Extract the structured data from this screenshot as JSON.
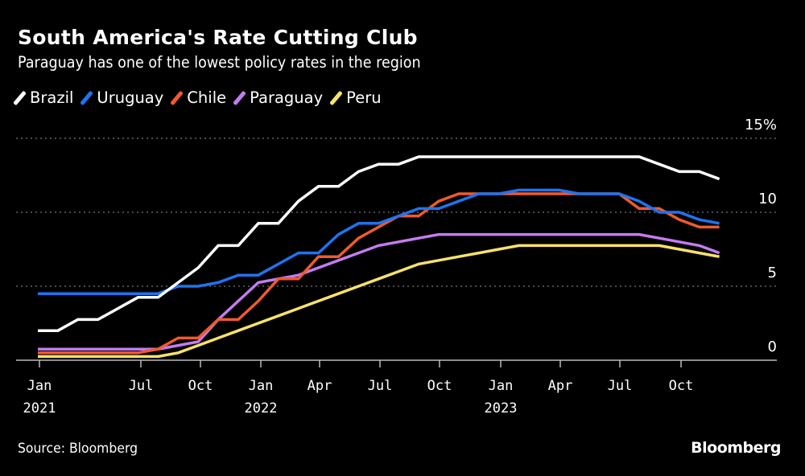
{
  "chart_data": {
    "type": "line",
    "title": "South America's Rate Cutting Club",
    "subtitle": "Paraguay has one of the lowest policy rates in the region",
    "x": [
      "2021-01",
      "2021-02",
      "2021-03",
      "2021-04",
      "2021-05",
      "2021-06",
      "2021-07",
      "2021-08",
      "2021-09",
      "2021-10",
      "2021-11",
      "2021-12",
      "2022-01",
      "2022-02",
      "2022-03",
      "2022-04",
      "2022-05",
      "2022-06",
      "2022-07",
      "2022-08",
      "2022-09",
      "2022-10",
      "2022-11",
      "2022-12",
      "2023-01",
      "2023-02",
      "2023-03",
      "2023-04",
      "2023-05",
      "2023-06",
      "2023-07",
      "2023-08",
      "2023-09",
      "2023-10",
      "2023-11"
    ],
    "series": [
      {
        "name": "Brazil",
        "color": "#ffffff",
        "values": [
          2,
          2,
          2.75,
          2.75,
          3.5,
          4.25,
          4.25,
          5.25,
          6.25,
          7.75,
          7.75,
          9.25,
          9.25,
          10.75,
          11.75,
          11.75,
          12.75,
          13.25,
          13.25,
          13.75,
          13.75,
          13.75,
          13.75,
          13.75,
          13.75,
          13.75,
          13.75,
          13.75,
          13.75,
          13.75,
          13.75,
          13.25,
          12.75,
          12.75,
          12.25
        ]
      },
      {
        "name": "Uruguay",
        "color": "#1f73f0",
        "values": [
          4.5,
          4.5,
          4.5,
          4.5,
          4.5,
          4.5,
          4.5,
          5,
          5,
          5.25,
          5.75,
          5.75,
          6.5,
          7.25,
          7.25,
          8.5,
          9.25,
          9.25,
          9.75,
          10.25,
          10.25,
          10.75,
          11.25,
          11.25,
          11.5,
          11.5,
          11.5,
          11.25,
          11.25,
          11.25,
          10.75,
          10,
          10,
          9.5,
          9.25
        ]
      },
      {
        "name": "Chile",
        "color": "#f05a2d",
        "values": [
          0.5,
          0.5,
          0.5,
          0.5,
          0.5,
          0.5,
          0.75,
          1.5,
          1.5,
          2.75,
          2.75,
          4,
          5.5,
          5.5,
          7,
          7,
          8.25,
          9,
          9.75,
          9.75,
          10.75,
          11.25,
          11.25,
          11.25,
          11.25,
          11.25,
          11.25,
          11.25,
          11.25,
          11.25,
          10.25,
          10.25,
          9.5,
          9,
          9
        ]
      },
      {
        "name": "Paraguay",
        "color": "#c47bf0",
        "values": [
          0.75,
          0.75,
          0.75,
          0.75,
          0.75,
          0.75,
          0.75,
          1,
          1.25,
          2.75,
          4,
          5.25,
          5.5,
          5.75,
          6.25,
          6.75,
          7.25,
          7.75,
          8,
          8.25,
          8.5,
          8.5,
          8.5,
          8.5,
          8.5,
          8.5,
          8.5,
          8.5,
          8.5,
          8.5,
          8.5,
          8.25,
          8,
          7.75,
          7.25
        ]
      },
      {
        "name": "Peru",
        "color": "#f7e26b",
        "values": [
          0.25,
          0.25,
          0.25,
          0.25,
          0.25,
          0.25,
          0.25,
          0.5,
          1,
          1.5,
          2,
          2.5,
          3,
          3.5,
          4,
          4.5,
          5,
          5.5,
          6,
          6.5,
          6.75,
          7,
          7.25,
          7.5,
          7.75,
          7.75,
          7.75,
          7.75,
          7.75,
          7.75,
          7.75,
          7.75,
          7.5,
          7.25,
          7
        ]
      }
    ],
    "ylim": [
      0,
      15
    ],
    "yticks": [
      "0",
      "5",
      "10",
      "15%"
    ],
    "xticks": [
      {
        "label": "Jan",
        "year": "2021"
      },
      {
        "label": "Jul",
        "year": ""
      },
      {
        "label": "Oct",
        "year": ""
      },
      {
        "label": "Jan",
        "year": "2022"
      },
      {
        "label": "Apr",
        "year": ""
      },
      {
        "label": "Jul",
        "year": ""
      },
      {
        "label": "Oct",
        "year": ""
      },
      {
        "label": "Jan",
        "year": "2023"
      },
      {
        "label": "Apr",
        "year": ""
      },
      {
        "label": "Jul",
        "year": ""
      },
      {
        "label": "Oct",
        "year": ""
      }
    ],
    "grid": true,
    "legend_placement": "top-left"
  },
  "source": "Source: Bloomberg",
  "logo": "Bloomberg"
}
